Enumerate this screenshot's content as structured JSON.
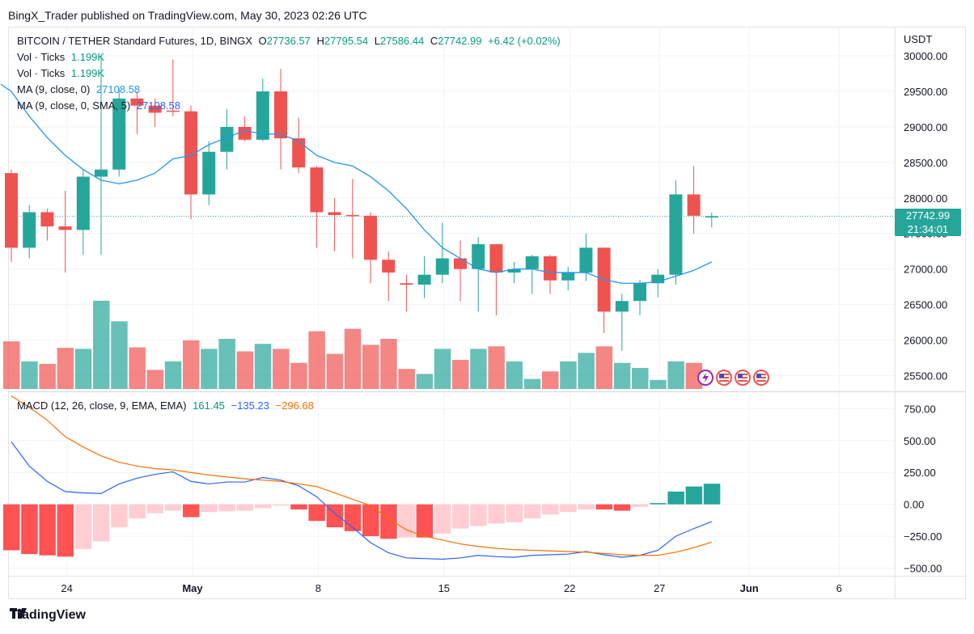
{
  "header": {
    "publisher_line": "BingX_Trader published on TradingView.com, May 30, 2023 02:26 UTC"
  },
  "legend": {
    "symbol": "BITCOIN / TETHER Standard Futures, 1D, BINGX",
    "o_label": "O",
    "o": "27736.57",
    "h_label": "H",
    "h": "27795.54",
    "l_label": "L",
    "l": "27586.44",
    "c_label": "C",
    "c": "27742.99",
    "change": "+6.42 (+0.02%)",
    "vol1_label": "Vol · Ticks",
    "vol1": "1.199K",
    "vol2_label": "Vol · Ticks",
    "vol2": "1.199K",
    "ma1_label": "MA (9, close, 0)",
    "ma1": "27108.58",
    "ma2_label": "MA (9, close, 0, SMA, 5)",
    "ma2": "27108.58",
    "macd_label": "MACD (12, 26, close, 9, EMA, EMA)",
    "macd_hist": "161.45",
    "macd_line": "−135.23",
    "macd_signal": "−296.68"
  },
  "axis": {
    "currency": "USDT",
    "last_price": "27742.99",
    "countdown": "21:34:01"
  },
  "footer": {
    "brand": "TradingView"
  },
  "colors": {
    "up": "#26a69a",
    "down": "#ef5350",
    "ma": "#2196f3",
    "macd": "#2962ff",
    "signal": "#ff6d00"
  },
  "chart_data": [
    {
      "type": "candlestick",
      "title": "BITCOIN / TETHER Standard Futures, 1D, BINGX",
      "x_ticks": [
        {
          "label": "24",
          "i": 3
        },
        {
          "label": "May",
          "i": 10
        },
        {
          "label": "8",
          "i": 17
        },
        {
          "label": "15",
          "i": 24
        },
        {
          "label": "22",
          "i": 31
        },
        {
          "label": "27",
          "i": 36
        },
        {
          "label": "Jun",
          "i": 41
        },
        {
          "label": "6",
          "i": 46
        }
      ],
      "ylim": [
        25300,
        30400
      ],
      "y_ticks": [
        "30000.00",
        "29500.00",
        "29000.00",
        "28500.00",
        "28000.00",
        "27500.00",
        "27000.00",
        "26500.00",
        "26000.00",
        "25500.00"
      ],
      "y_tick_values": [
        30000,
        29500,
        29000,
        28500,
        28000,
        27500,
        27000,
        26500,
        26000,
        25500
      ],
      "ohlc": [
        [
          28350,
          28400,
          27100,
          27300
        ],
        [
          27300,
          27900,
          27150,
          27800
        ],
        [
          27800,
          27850,
          27400,
          27600
        ],
        [
          27600,
          28100,
          26950,
          27550
        ],
        [
          27550,
          28400,
          27200,
          28300
        ],
        [
          28300,
          30000,
          27200,
          28400
        ],
        [
          28400,
          29550,
          28300,
          29400
        ],
        [
          29400,
          29500,
          28900,
          29300
        ],
        [
          29300,
          29400,
          29000,
          29200
        ],
        [
          29230,
          29950,
          29150,
          29220
        ],
        [
          29220,
          29300,
          27700,
          28050
        ],
        [
          28050,
          28800,
          27900,
          28650
        ],
        [
          28650,
          29250,
          28400,
          29000
        ],
        [
          29000,
          29150,
          28800,
          28820
        ],
        [
          28820,
          29680,
          28800,
          29500
        ],
        [
          29500,
          29820,
          28400,
          28840
        ],
        [
          28840,
          29130,
          28350,
          28430
        ],
        [
          28430,
          28450,
          27300,
          27800
        ],
        [
          27800,
          28000,
          27250,
          27760
        ],
        [
          27760,
          28270,
          27150,
          27750
        ],
        [
          27750,
          27800,
          26800,
          27130
        ],
        [
          27130,
          27250,
          26550,
          26950
        ],
        [
          26800,
          26920,
          26400,
          26780
        ],
        [
          26780,
          27180,
          26590,
          26920
        ],
        [
          26920,
          27650,
          26800,
          27150
        ],
        [
          27150,
          27400,
          26550,
          27000
        ],
        [
          27000,
          27450,
          26400,
          27350
        ],
        [
          27350,
          27350,
          26350,
          26950
        ],
        [
          26950,
          27100,
          26800,
          27000
        ],
        [
          27000,
          27200,
          26650,
          27180
        ],
        [
          27180,
          27200,
          26650,
          26840
        ],
        [
          26840,
          27030,
          26700,
          26950
        ],
        [
          26950,
          27500,
          26830,
          27300
        ],
        [
          27300,
          27300,
          26100,
          26400
        ],
        [
          26400,
          26650,
          25850,
          26550
        ],
        [
          26550,
          26850,
          26350,
          26800
        ],
        [
          26800,
          27000,
          26600,
          26920
        ],
        [
          26920,
          28250,
          26780,
          28050
        ],
        [
          28050,
          28450,
          27500,
          27750
        ],
        [
          27736.57,
          27795.54,
          27586.44,
          27742.99
        ]
      ],
      "ma": [
        29500,
        29150,
        28850,
        28600,
        28400,
        28250,
        28200,
        28250,
        28350,
        28550,
        28600,
        28750,
        28850,
        28950,
        28900,
        28900,
        28800,
        28600,
        28500,
        28450,
        28300,
        28100,
        27850,
        27550,
        27300,
        27150,
        27000,
        26950,
        27000,
        27000,
        26950,
        26950,
        26950,
        26850,
        26800,
        26800,
        26820,
        26900,
        26980,
        27100
      ],
      "volume": [
        0.95,
        0.55,
        0.5,
        0.82,
        0.8,
        1.76,
        1.35,
        0.83,
        0.38,
        0.55,
        0.97,
        0.8,
        1.0,
        0.75,
        0.9,
        0.8,
        0.52,
        1.15,
        0.7,
        1.2,
        0.88,
        1.0,
        0.4,
        0.3,
        0.8,
        0.58,
        0.8,
        0.85,
        0.55,
        0.2,
        0.35,
        0.55,
        0.72,
        0.85,
        0.52,
        0.42,
        0.18,
        0.55,
        0.52,
        0.0
      ],
      "volume_up": [
        false,
        true,
        false,
        false,
        true,
        true,
        true,
        false,
        false,
        true,
        false,
        true,
        true,
        false,
        true,
        false,
        false,
        false,
        false,
        false,
        false,
        false,
        false,
        true,
        true,
        false,
        true,
        false,
        true,
        true,
        false,
        true,
        true,
        false,
        true,
        true,
        true,
        true,
        false,
        true
      ]
    },
    {
      "type": "bar+line",
      "title": "MACD (12, 26, close, 9, EMA, EMA)",
      "ylim": [
        -560,
        860
      ],
      "y_ticks": [
        "750.00",
        "500.00",
        "250.00",
        "0.00",
        "−250.00",
        "−500.00"
      ],
      "y_tick_values": [
        750,
        500,
        250,
        0,
        -250,
        -500
      ],
      "histogram": [
        -360,
        -390,
        -400,
        -410,
        -350,
        -290,
        -180,
        -110,
        -70,
        -50,
        -100,
        -60,
        -55,
        -50,
        -30,
        -10,
        -40,
        -130,
        -180,
        -210,
        -250,
        -270,
        -260,
        -260,
        -230,
        -190,
        -170,
        -150,
        -140,
        -110,
        -80,
        -60,
        -40,
        -40,
        -50,
        -20,
        10,
        100,
        140,
        161.45
      ],
      "macd": [
        490,
        300,
        180,
        100,
        90,
        85,
        160,
        205,
        235,
        255,
        180,
        160,
        175,
        175,
        210,
        190,
        145,
        60,
        -70,
        -180,
        -300,
        -380,
        -420,
        -425,
        -430,
        -420,
        -400,
        -410,
        -415,
        -400,
        -395,
        -390,
        -370,
        -395,
        -415,
        -400,
        -360,
        -250,
        -190,
        -135.23
      ],
      "signal": [
        850,
        760,
        660,
        530,
        450,
        380,
        330,
        300,
        280,
        270,
        250,
        230,
        215,
        200,
        190,
        180,
        160,
        140,
        90,
        40,
        -10,
        -110,
        -200,
        -250,
        -280,
        -310,
        -330,
        -345,
        -355,
        -360,
        -365,
        -370,
        -375,
        -385,
        -395,
        -400,
        -400,
        -375,
        -340,
        -296.68
      ]
    }
  ]
}
